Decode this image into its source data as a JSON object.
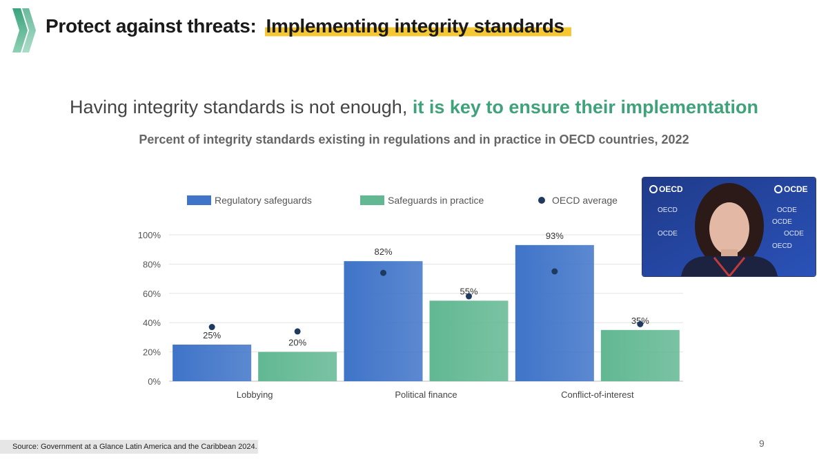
{
  "header": {
    "title": "Protect against threats:",
    "highlight": "Implementing integrity standards"
  },
  "headline": {
    "plain": "Having integrity standards is not enough,",
    "accent": "it is key to ensure their implementation"
  },
  "colors": {
    "regulatory": "#3f74c8",
    "practice": "#62b893",
    "oecd_avg": "#1f3a5f",
    "accent": "#3fa27a",
    "highlight": "#f5c732"
  },
  "chart_data": {
    "type": "bar",
    "title": "Percent of integrity standards existing in regulations and in practice in OECD countries, 2022",
    "categories": [
      "Lobbying",
      "Political finance",
      "Conflict-of-interest"
    ],
    "series": [
      {
        "name": "Regulatory safeguards",
        "values": [
          25,
          82,
          93
        ],
        "labels": [
          "25%",
          "82%",
          "93%"
        ],
        "oecd_average": [
          37,
          74,
          75
        ]
      },
      {
        "name": "Safeguards in practice",
        "values": [
          20,
          55,
          35
        ],
        "labels": [
          "20%",
          "55%",
          "35%"
        ],
        "oecd_average": [
          34,
          58,
          39
        ]
      }
    ],
    "markers_legend": "OECD average",
    "yticks": [
      "0%",
      "20%",
      "40%",
      "60%",
      "80%",
      "100%"
    ],
    "ylim": [
      0,
      100
    ],
    "grid": true,
    "legend_position": "top"
  },
  "video": {
    "brand_left": "OECD",
    "brand_right": "OCDE",
    "watermark_en": "OECD",
    "watermark_fr": "OCDE"
  },
  "footer": {
    "source": "Source: Government at a Glance Latin America and the Caribbean 2024.",
    "page_number": "9"
  }
}
